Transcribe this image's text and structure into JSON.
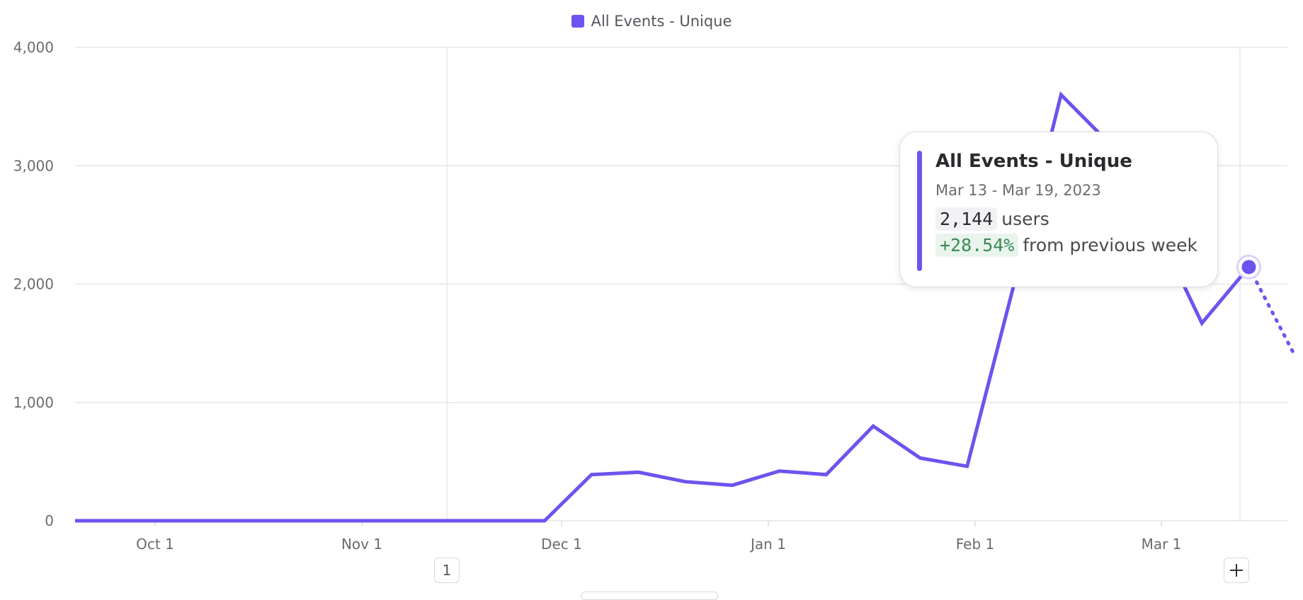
{
  "legend": {
    "label": "All Events - Unique",
    "color": "#6c54ee"
  },
  "chart_data": {
    "type": "line",
    "x": [
      "Sep 19",
      "Sep 26",
      "Oct 3",
      "Oct 10",
      "Oct 17",
      "Oct 24",
      "Oct 31",
      "Nov 7",
      "Nov 14",
      "Nov 21",
      "Nov 28",
      "Dec 5",
      "Dec 12",
      "Dec 19",
      "Dec 26",
      "Jan 2",
      "Jan 9",
      "Jan 16",
      "Jan 23",
      "Jan 30",
      "Feb 6",
      "Feb 13",
      "Feb 20",
      "Feb 27",
      "Mar 6",
      "Mar 13",
      "Mar 20"
    ],
    "series": [
      {
        "name": "All Events - Unique",
        "color": "#6c54ee",
        "values": [
          0,
          0,
          0,
          0,
          0,
          0,
          0,
          0,
          0,
          0,
          0,
          390,
          410,
          330,
          300,
          420,
          390,
          800,
          530,
          460,
          2000,
          3600,
          3200,
          2500,
          1670,
          2144,
          1380
        ],
        "partial_from_index": 25
      }
    ],
    "x_ticks": [
      "Oct 1",
      "Nov 1",
      "Dec 1",
      "Jan 1",
      "Feb 1",
      "Mar 1"
    ],
    "y_ticks": [
      "0",
      "1,000",
      "2,000",
      "3,000",
      "4,000"
    ],
    "ylim": [
      0,
      4000
    ],
    "grid": true,
    "legend_position": "top-center",
    "annotations": [
      "1"
    ],
    "add_annotation_icon": "plus-icon"
  },
  "tooltip": {
    "title": "All Events - Unique",
    "range": "Mar 13 - Mar 19, 2023",
    "value": "2,144",
    "unit": "users",
    "change": "+28.54%",
    "change_text": "from previous week"
  },
  "annotation_marker": "1"
}
